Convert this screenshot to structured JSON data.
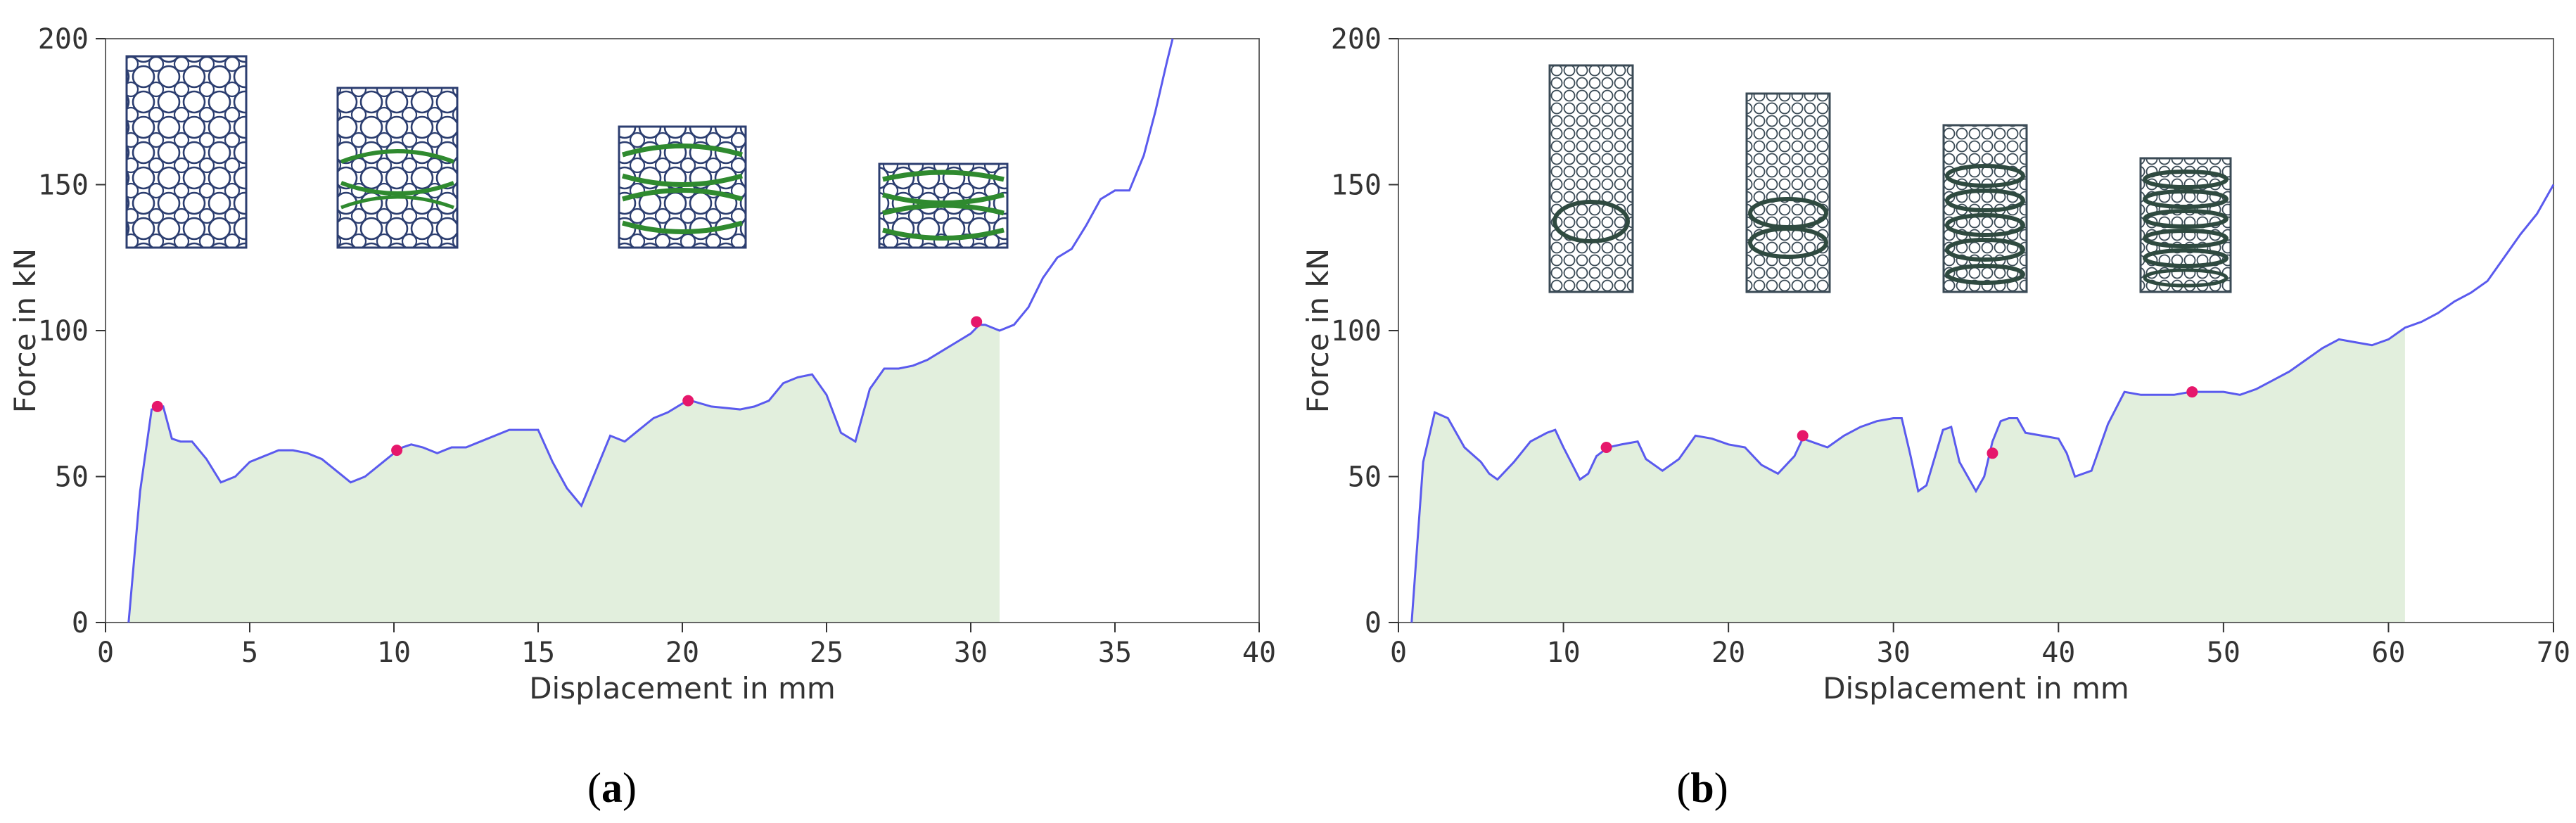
{
  "chart_data": [
    {
      "panel_label": "(a)",
      "type": "line",
      "xlabel": "Displacement in mm",
      "ylabel": "Force in kN",
      "xlim": [
        0,
        40
      ],
      "ylim": [
        0,
        200
      ],
      "xticks": [
        0,
        5,
        10,
        15,
        20,
        25,
        30,
        35,
        40
      ],
      "yticks": [
        0,
        50,
        100,
        150,
        200
      ],
      "grid": false,
      "line_color": "#5a5aee",
      "fill_color": "#e2efdd",
      "fill_end_x": 31,
      "marker_color": "#e6176b",
      "series": [
        {
          "name": "force-displacement",
          "x": [
            0.8,
            1.2,
            1.6,
            2.0,
            2.3,
            2.6,
            3.0,
            3.5,
            4.0,
            4.5,
            5.0,
            5.5,
            6.0,
            6.5,
            7.0,
            7.5,
            8.0,
            8.5,
            9.0,
            9.5,
            10.0,
            10.3,
            10.6,
            11.0,
            11.5,
            12.0,
            12.5,
            13.0,
            14.0,
            15.0,
            15.5,
            16.0,
            16.5,
            17.0,
            17.5,
            18.0,
            18.5,
            19.0,
            19.5,
            20.0,
            20.3,
            21.0,
            22.0,
            22.5,
            23.0,
            23.5,
            24.0,
            24.5,
            25.0,
            25.5,
            26.0,
            26.5,
            27.0,
            27.5,
            28.0,
            28.5,
            29.0,
            29.5,
            30.0,
            30.3,
            30.5,
            31.0,
            31.5,
            32.0,
            32.5,
            33.0,
            33.5,
            34.0,
            34.5,
            35.0,
            35.5,
            36.0,
            36.4,
            36.8,
            37.0
          ],
          "y": [
            0,
            45,
            73,
            74,
            63,
            62,
            62,
            56,
            48,
            50,
            55,
            57,
            59,
            59,
            58,
            56,
            52,
            48,
            50,
            54,
            58,
            60,
            61,
            60,
            58,
            60,
            60,
            62,
            66,
            66,
            55,
            46,
            40,
            52,
            64,
            62,
            66,
            70,
            72,
            75,
            76,
            74,
            73,
            74,
            76,
            82,
            84,
            85,
            78,
            65,
            62,
            80,
            87,
            87,
            88,
            90,
            93,
            96,
            99,
            102,
            102,
            100,
            102,
            108,
            118,
            125,
            128,
            136,
            145,
            148,
            148,
            160,
            175,
            192,
            200
          ]
        }
      ],
      "markers": [
        {
          "x": 1.8,
          "y": 74
        },
        {
          "x": 10.1,
          "y": 59
        },
        {
          "x": 20.2,
          "y": 76
        },
        {
          "x": 30.2,
          "y": 103
        }
      ]
    },
    {
      "panel_label": "(b)",
      "type": "line",
      "xlabel": "Displacement in mm",
      "ylabel": "Force in kN",
      "xlim": [
        0,
        70
      ],
      "ylim": [
        0,
        200
      ],
      "xticks": [
        0,
        10,
        20,
        30,
        40,
        50,
        60,
        70
      ],
      "yticks": [
        0,
        50,
        100,
        150,
        200
      ],
      "grid": false,
      "line_color": "#5a5aee",
      "fill_color": "#e2efdd",
      "fill_end_x": 61,
      "marker_color": "#e6176b",
      "series": [
        {
          "name": "force-displacement",
          "x": [
            0.8,
            1.5,
            2.2,
            3.0,
            3.5,
            4.0,
            5.0,
            5.5,
            6.0,
            7.0,
            8.0,
            9.0,
            9.5,
            10.0,
            11.0,
            11.5,
            12.0,
            12.7,
            13.5,
            14.5,
            15.0,
            16.0,
            17.0,
            18.0,
            19.0,
            20.0,
            21.0,
            22.0,
            23.0,
            24.0,
            24.5,
            25.0,
            26.0,
            27.0,
            28.0,
            29.0,
            30.0,
            30.5,
            31.0,
            31.5,
            32.0,
            33.0,
            33.5,
            34.0,
            35.0,
            35.5,
            36.0,
            36.5,
            37.0,
            37.5,
            38.0,
            39.0,
            40.0,
            40.5,
            41.0,
            42.0,
            43.0,
            44.0,
            45.0,
            46.0,
            47.0,
            48.0,
            49.0,
            50.0,
            51.0,
            52.0,
            53.0,
            54.0,
            55.0,
            56.0,
            57.0,
            58.0,
            59.0,
            60.0,
            61.0,
            62.0,
            63.0,
            64.0,
            65.0,
            66.0,
            67.0,
            68.0,
            69.0,
            70.0
          ],
          "y": [
            0,
            55,
            72,
            70,
            65,
            60,
            55,
            51,
            49,
            55,
            62,
            65,
            66,
            60,
            49,
            51,
            57,
            60,
            61,
            62,
            56,
            52,
            56,
            64,
            63,
            61,
            60,
            54,
            51,
            57,
            63,
            62,
            60,
            64,
            67,
            69,
            70,
            70,
            58,
            45,
            47,
            66,
            67,
            55,
            45,
            50,
            62,
            69,
            70,
            70,
            65,
            64,
            63,
            58,
            50,
            52,
            68,
            79,
            78,
            78,
            78,
            79,
            79,
            79,
            78,
            80,
            83,
            86,
            90,
            94,
            97,
            96,
            95,
            97,
            101,
            103,
            106,
            110,
            113,
            117,
            125,
            133,
            140,
            150
          ]
        }
      ],
      "markers": [
        {
          "x": 12.6,
          "y": 60
        },
        {
          "x": 24.5,
          "y": 64
        },
        {
          "x": 36.0,
          "y": 58
        },
        {
          "x": 48.1,
          "y": 79
        }
      ]
    }
  ]
}
